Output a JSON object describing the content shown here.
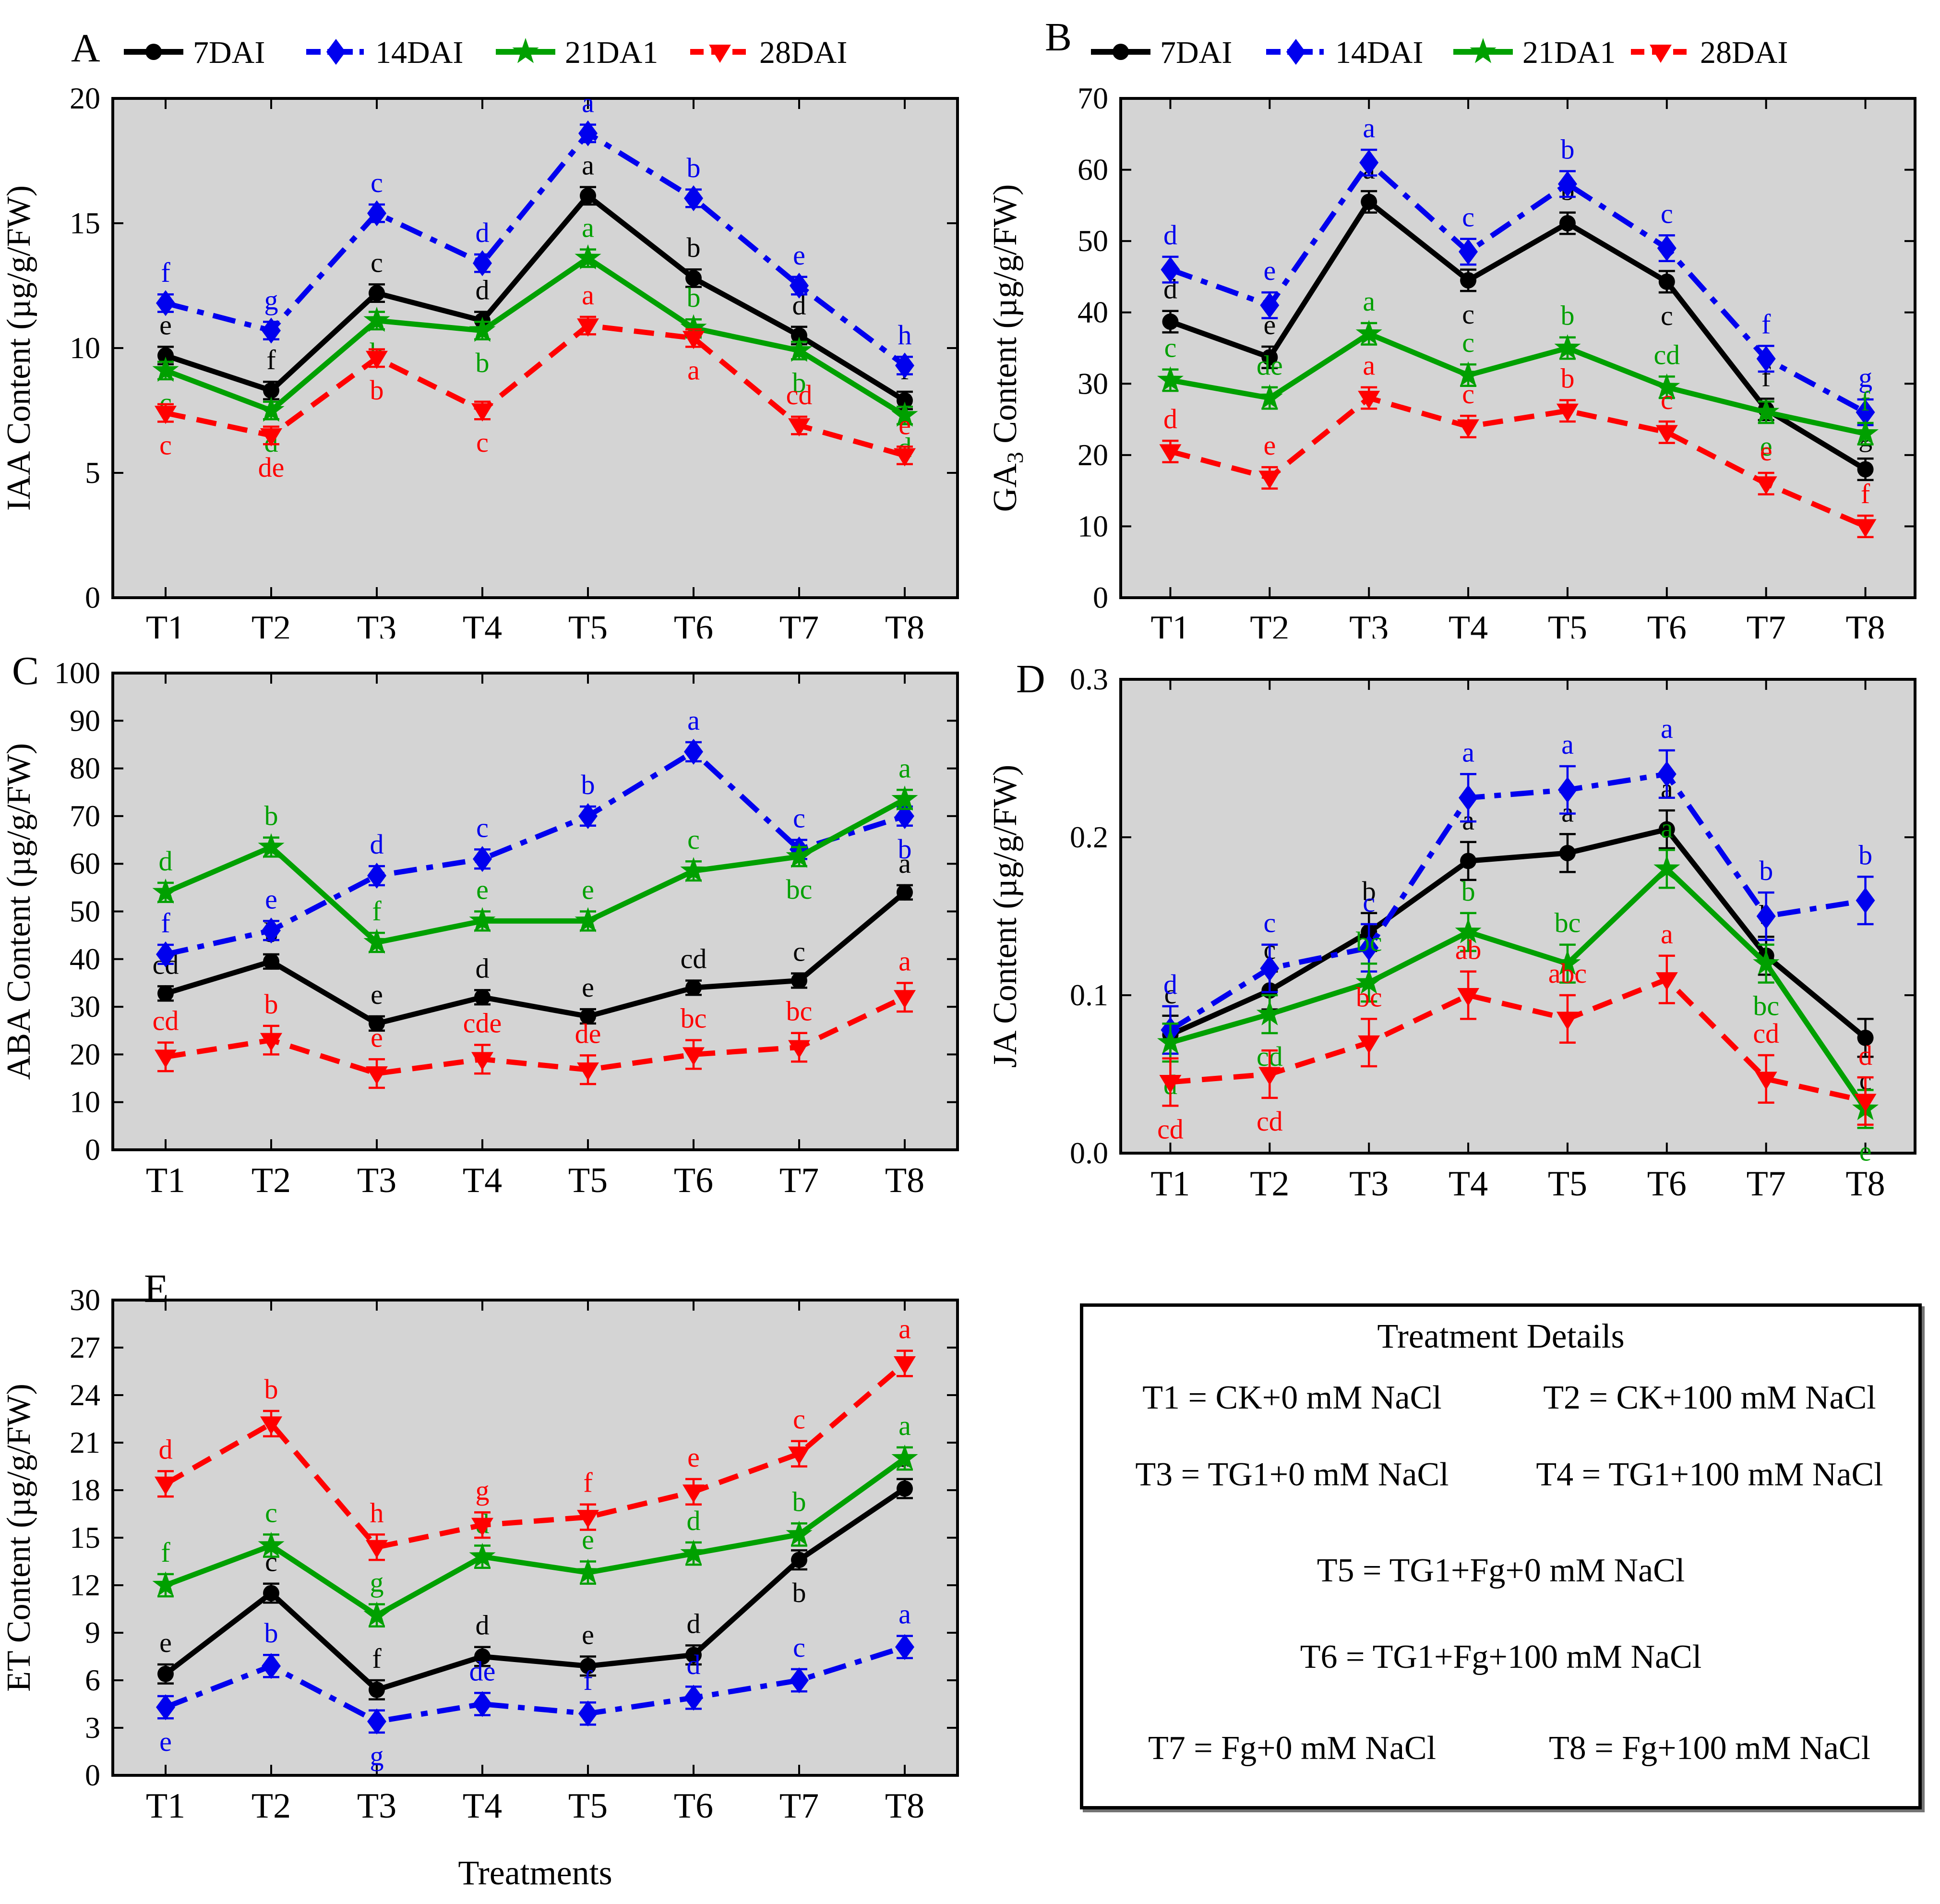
{
  "figure": {
    "plot_bg": "#d4d4d4",
    "accent_black": "#000000",
    "accent_blue": "#0000ee",
    "accent_green": "#00a000",
    "accent_red": "#ff0000"
  },
  "categories": [
    "T1",
    "T2",
    "T3",
    "T4",
    "T5",
    "T6",
    "T7",
    "T8"
  ],
  "legend": {
    "items": [
      "7DAI",
      "14DAI",
      "21DA1",
      "28DAI"
    ]
  },
  "chart_data": [
    {
      "type": "line",
      "panel": "A",
      "ylabel_pre": "IAA Content (µg/g/FW)",
      "ylabel_sub": "",
      "ylabel_post": "",
      "ylim": [
        0,
        20
      ],
      "yticks": [
        0,
        5,
        10,
        15,
        20
      ],
      "ytick_labels": [
        "0",
        "5",
        "10",
        "15",
        "20"
      ],
      "xlabel": "",
      "show_legend": true,
      "grid": false,
      "legend_position": "top",
      "series": [
        {
          "name": "7DAI",
          "color": "#000000",
          "marker": "circle",
          "dash": "solid",
          "err": 0.35,
          "values": [
            9.7,
            8.3,
            12.2,
            11.1,
            16.1,
            12.8,
            10.5,
            7.9
          ],
          "letters": [
            "e",
            "f",
            "c",
            "d",
            "a",
            "b",
            "d",
            "f"
          ],
          "letter_pos": [
            "above",
            "above",
            "above",
            "above",
            "above",
            "above",
            "above",
            "above"
          ]
        },
        {
          "name": "14DAI",
          "color": "#0000ee",
          "marker": "diamond",
          "dash": "dashdot",
          "err": 0.35,
          "values": [
            11.8,
            10.7,
            15.4,
            13.4,
            18.6,
            16.0,
            12.5,
            9.3
          ],
          "letters": [
            "f",
            "g",
            "c",
            "d",
            "a",
            "b",
            "e",
            "h"
          ],
          "letter_pos": [
            "above",
            "above",
            "above",
            "above",
            "above",
            "above",
            "above",
            "above"
          ]
        },
        {
          "name": "21DA1",
          "color": "#00a000",
          "marker": "star",
          "dash": "solid",
          "err": 0.35,
          "values": [
            9.1,
            7.5,
            11.1,
            10.7,
            13.6,
            10.8,
            9.9,
            7.3
          ],
          "letters": [
            "c",
            "d",
            "b",
            "b",
            "a",
            "b",
            "b",
            "d"
          ],
          "letter_pos": [
            "below",
            "below",
            "below",
            "below",
            "above",
            "above",
            "below",
            "below"
          ]
        },
        {
          "name": "28DAI",
          "color": "#ff0000",
          "marker": "triangle-down",
          "dash": "dashed",
          "err": 0.35,
          "values": [
            7.4,
            6.5,
            9.6,
            7.5,
            10.9,
            10.4,
            6.9,
            5.7
          ],
          "letters": [
            "c",
            "de",
            "b",
            "c",
            "a",
            "a",
            "cd",
            "e"
          ],
          "letter_pos": [
            "below",
            "below",
            "below",
            "below",
            "above",
            "below",
            "above",
            "above"
          ]
        }
      ]
    },
    {
      "type": "line",
      "panel": "B",
      "ylabel_pre": "GA",
      "ylabel_sub": "3",
      "ylabel_post": " Content (µg/g/FW)",
      "ylim": [
        0,
        70
      ],
      "yticks": [
        0,
        10,
        20,
        30,
        40,
        50,
        60,
        70
      ],
      "ytick_labels": [
        "0",
        "10",
        "20",
        "30",
        "40",
        "50",
        "60",
        "70"
      ],
      "xlabel": "",
      "show_legend": true,
      "grid": false,
      "legend_position": "top",
      "series": [
        {
          "name": "7DAI",
          "color": "#000000",
          "marker": "circle",
          "dash": "solid",
          "err": 1.5,
          "values": [
            38.7,
            33.7,
            55.5,
            44.5,
            52.5,
            44.3,
            26.4,
            18.0
          ],
          "letters": [
            "d",
            "e",
            "a",
            "c",
            "b",
            "c",
            "f",
            "g"
          ],
          "letter_pos": [
            "above",
            "above",
            "above",
            "below",
            "above",
            "below",
            "above",
            "above"
          ]
        },
        {
          "name": "14DAI",
          "color": "#0000ee",
          "marker": "diamond",
          "dash": "dashdot",
          "err": 1.8,
          "values": [
            46,
            41,
            61,
            48.5,
            58,
            49,
            33.5,
            26
          ],
          "letters": [
            "d",
            "e",
            "a",
            "c",
            "b",
            "c",
            "f",
            "g"
          ],
          "letter_pos": [
            "above",
            "above",
            "above",
            "above",
            "above",
            "above",
            "above",
            "above"
          ]
        },
        {
          "name": "21DA1",
          "color": "#00a000",
          "marker": "star",
          "dash": "solid",
          "err": 1.5,
          "values": [
            30.5,
            28,
            37,
            31.2,
            35,
            29.5,
            26,
            23
          ],
          "letters": [
            "c",
            "de",
            "a",
            "c",
            "b",
            "cd",
            "e",
            "f"
          ],
          "letter_pos": [
            "above",
            "above",
            "above",
            "above",
            "above",
            "above",
            "below",
            "above"
          ]
        },
        {
          "name": "28DAI",
          "color": "#ff0000",
          "marker": "triangle-down",
          "dash": "dashed",
          "err": 1.5,
          "values": [
            20.5,
            16.8,
            28,
            24,
            26.2,
            23.2,
            16,
            10
          ],
          "letters": [
            "d",
            "e",
            "a",
            "c",
            "b",
            "c",
            "e",
            "f"
          ],
          "letter_pos": [
            "above",
            "above",
            "above",
            "above",
            "above",
            "above",
            "above",
            "above"
          ]
        }
      ]
    },
    {
      "type": "line",
      "panel": "C",
      "ylabel_pre": "ABA Content (µg/g/FW)",
      "ylabel_sub": "",
      "ylabel_post": "",
      "ylim": [
        0,
        100
      ],
      "yticks": [
        0,
        10,
        20,
        30,
        40,
        50,
        60,
        70,
        80,
        90,
        100
      ],
      "ytick_labels": [
        "0",
        "10",
        "20",
        "30",
        "40",
        "50",
        "60",
        "70",
        "80",
        "90",
        "100"
      ],
      "xlabel": "",
      "show_legend": false,
      "grid": false,
      "series": [
        {
          "name": "7DAI",
          "color": "#000000",
          "marker": "circle",
          "dash": "solid",
          "err": 1.5,
          "values": [
            32.8,
            39.5,
            26.5,
            32,
            28,
            34,
            35.5,
            54
          ],
          "letters": [
            "cd",
            "b",
            "e",
            "d",
            "e",
            "cd",
            "c",
            "a"
          ],
          "letter_pos": [
            "above",
            "above",
            "above",
            "above",
            "above",
            "above",
            "above",
            "above"
          ]
        },
        {
          "name": "14DAI",
          "color": "#0000ee",
          "marker": "diamond",
          "dash": "dashdot",
          "err": 2,
          "values": [
            41,
            46,
            57.5,
            61,
            70,
            83.5,
            63,
            70
          ],
          "letters": [
            "f",
            "e",
            "d",
            "c",
            "b",
            "a",
            "c",
            "b"
          ],
          "letter_pos": [
            "above",
            "above",
            "above",
            "above",
            "above",
            "above",
            "above",
            "below"
          ]
        },
        {
          "name": "21DA1",
          "color": "#00a000",
          "marker": "star",
          "dash": "solid",
          "err": 2,
          "values": [
            54,
            63.5,
            43.5,
            48,
            48,
            58.5,
            61.5,
            73.5
          ],
          "letters": [
            "d",
            "b",
            "f",
            "e",
            "e",
            "c",
            "bc",
            "a"
          ],
          "letter_pos": [
            "above",
            "above",
            "above",
            "above",
            "above",
            "above",
            "below",
            "above"
          ]
        },
        {
          "name": "28DAI",
          "color": "#ff0000",
          "marker": "triangle-down",
          "dash": "dashed",
          "err": 3,
          "values": [
            19.5,
            23,
            16,
            19,
            16.8,
            20,
            21.5,
            32
          ],
          "letters": [
            "cd",
            "b",
            "e",
            "cde",
            "de",
            "bc",
            "bc",
            "a"
          ],
          "letter_pos": [
            "above",
            "above",
            "above",
            "above",
            "above",
            "above",
            "above",
            "above"
          ]
        }
      ]
    },
    {
      "type": "line",
      "panel": "D",
      "ylabel_pre": "JA Content (µg/g/FW)",
      "ylabel_sub": "",
      "ylabel_post": "",
      "ylim": [
        0,
        0.3
      ],
      "yticks": [
        0,
        0.1,
        0.2,
        0.3
      ],
      "ytick_labels": [
        "0.0",
        "0.1",
        "0.2",
        "0.3"
      ],
      "xlabel": "",
      "show_legend": false,
      "grid": false,
      "series": [
        {
          "name": "7DAI",
          "color": "#000000",
          "marker": "circle",
          "dash": "solid",
          "err": 0.012,
          "values": [
            0.075,
            0.103,
            0.14,
            0.185,
            0.19,
            0.205,
            0.125,
            0.073
          ],
          "letters": [
            "c",
            "c",
            "b",
            "a",
            "a",
            "a",
            "b",
            "c"
          ],
          "letter_pos": [
            "above",
            "above",
            "above",
            "above",
            "above",
            "above",
            "above",
            "below"
          ]
        },
        {
          "name": "14DAI",
          "color": "#0000ee",
          "marker": "diamond",
          "dash": "dashdot",
          "err": 0.015,
          "values": [
            0.078,
            0.117,
            0.13,
            0.225,
            0.23,
            0.24,
            0.15,
            0.16
          ],
          "letters": [
            "d",
            "c",
            "c",
            "a",
            "a",
            "a",
            "b",
            "b"
          ],
          "letter_pos": [
            "above",
            "above",
            "above",
            "above",
            "above",
            "above",
            "above",
            "above"
          ]
        },
        {
          "name": "21DA1",
          "color": "#00a000",
          "marker": "star",
          "dash": "solid",
          "err": 0.012,
          "values": [
            0.07,
            0.088,
            0.108,
            0.14,
            0.12,
            0.18,
            0.12,
            0.028
          ],
          "letters": [
            "d",
            "cd",
            "bc",
            "b",
            "bc",
            "a",
            "bc",
            "e"
          ],
          "letter_pos": [
            "below",
            "below",
            "above",
            "above",
            "above",
            "above",
            "below",
            "below"
          ]
        },
        {
          "name": "28DAI",
          "color": "#ff0000",
          "marker": "triangle-down",
          "dash": "dashed",
          "err": 0.015,
          "values": [
            0.045,
            0.05,
            0.07,
            0.1,
            0.085,
            0.11,
            0.047,
            0.033
          ],
          "letters": [
            "cd",
            "cd",
            "bc",
            "ab",
            "abc",
            "a",
            "cd",
            "d"
          ],
          "letter_pos": [
            "below",
            "below",
            "above",
            "above",
            "above",
            "above",
            "above",
            "above"
          ]
        }
      ]
    },
    {
      "type": "line",
      "panel": "E",
      "ylabel_pre": "ET Content (µg/g/FW)",
      "ylabel_sub": "",
      "ylabel_post": "",
      "ylim": [
        0,
        30
      ],
      "yticks": [
        0,
        3,
        6,
        9,
        12,
        15,
        18,
        21,
        24,
        27,
        30
      ],
      "ytick_labels": [
        "0",
        "3",
        "6",
        "9",
        "12",
        "15",
        "18",
        "21",
        "24",
        "27",
        "30"
      ],
      "xlabel": "Treatments",
      "show_legend": false,
      "grid": false,
      "series": [
        {
          "name": "7DAI",
          "color": "#000000",
          "marker": "circle",
          "dash": "solid",
          "err": 0.6,
          "values": [
            6.4,
            11.5,
            5.4,
            7.5,
            6.9,
            7.6,
            13.6,
            18.1
          ],
          "letters": [
            "e",
            "c",
            "f",
            "d",
            "e",
            "d",
            "b",
            "a"
          ],
          "letter_pos": [
            "above",
            "above",
            "above",
            "above",
            "above",
            "above",
            "below",
            "above"
          ]
        },
        {
          "name": "14DAI",
          "color": "#0000ee",
          "marker": "diamond",
          "dash": "dashdot",
          "err": 0.7,
          "values": [
            4.3,
            6.9,
            3.4,
            4.5,
            3.9,
            4.9,
            6.0,
            8.1
          ],
          "letters": [
            "e",
            "b",
            "g",
            "de",
            "f",
            "d",
            "c",
            "a"
          ],
          "letter_pos": [
            "below",
            "above",
            "below",
            "above",
            "above",
            "above",
            "above",
            "above"
          ]
        },
        {
          "name": "21DA1",
          "color": "#00a000",
          "marker": "star",
          "dash": "solid",
          "err": 0.7,
          "values": [
            12.0,
            14.5,
            10.1,
            13.8,
            12.8,
            14.0,
            15.2,
            20.0
          ],
          "letters": [
            "f",
            "c",
            "g",
            "d",
            "e",
            "d",
            "b",
            "a"
          ],
          "letter_pos": [
            "above",
            "above",
            "above",
            "above",
            "above",
            "above",
            "above",
            "above"
          ]
        },
        {
          "name": "28DAI",
          "color": "#ff0000",
          "marker": "triangle-down",
          "dash": "dashed",
          "err": 0.8,
          "values": [
            18.4,
            22.2,
            14.4,
            15.8,
            16.3,
            17.9,
            20.3,
            26.0
          ],
          "letters": [
            "d",
            "b",
            "h",
            "g",
            "f",
            "e",
            "c",
            "a"
          ],
          "letter_pos": [
            "above",
            "above",
            "above",
            "above",
            "above",
            "above",
            "above",
            "above"
          ]
        }
      ]
    }
  ],
  "treatment_box": {
    "title": "Treatment Details",
    "rows": [
      {
        "cols": [
          "T1 = CK+0 mM NaCl",
          "T2 = CK+100 mM NaCl"
        ]
      },
      {
        "cols": [
          "T3 = TG1+0 mM NaCl",
          "T4 = TG1+100 mM NaCl"
        ]
      },
      {
        "cols": [
          "T5 = TG1+Fg+0 mM NaCl"
        ]
      },
      {
        "cols": [
          "T6 = TG1+Fg+100 mM NaCl"
        ]
      },
      {
        "cols": [
          "T7 = Fg+0 mM NaCl",
          "T8 = Fg+100 mM NaCl"
        ]
      }
    ]
  }
}
